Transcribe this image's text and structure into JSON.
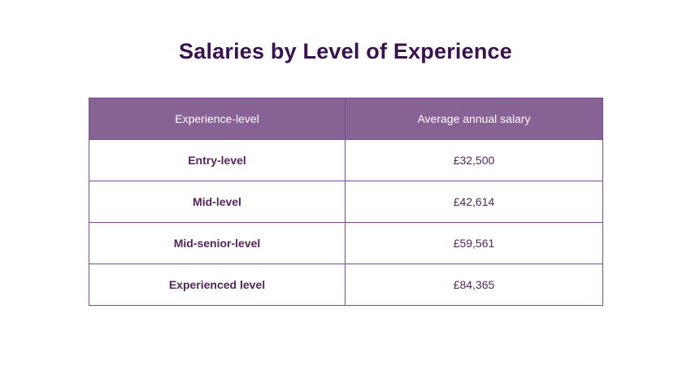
{
  "title": "Salaries by Level of Experience",
  "table": {
    "headers": [
      "Experience-level",
      "Average annual salary"
    ],
    "rows": [
      {
        "level": "Entry-level",
        "salary": "£32,500"
      },
      {
        "level": "Mid-level",
        "salary": "£42,614"
      },
      {
        "level": "Mid-senior-level",
        "salary": "£59,561"
      },
      {
        "level": "Experienced level",
        "salary": "£84,365"
      }
    ]
  },
  "colors": {
    "title": "#3b1250",
    "header_bg": "#876295",
    "header_text": "#ffffff",
    "cell_text": "#56245f",
    "border": "#7a4e8c"
  }
}
